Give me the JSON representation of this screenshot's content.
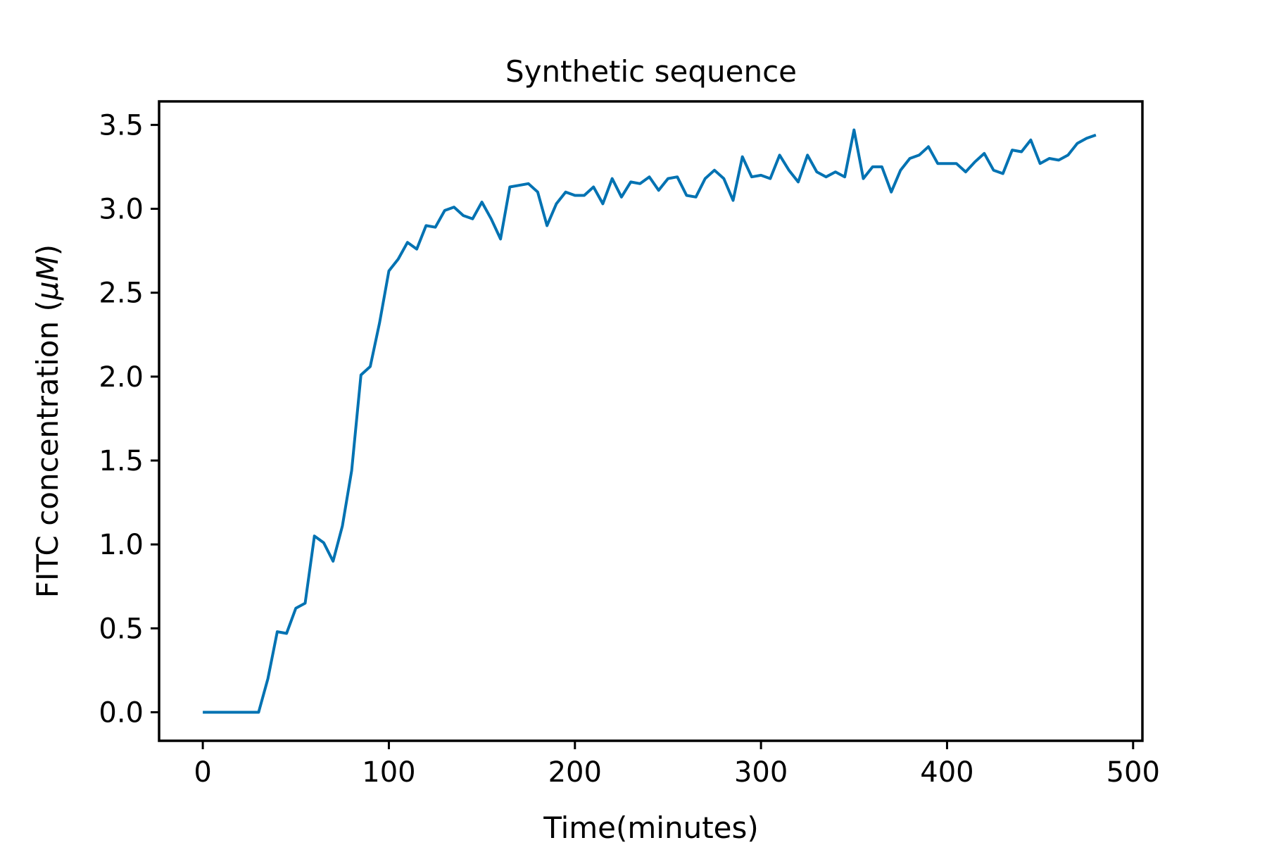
{
  "chart_data": {
    "type": "line",
    "title": "Synthetic sequence",
    "xlabel": "Time(minutes)",
    "ylabel_prefix": "FITC concentration (",
    "ylabel_unit": "μM",
    "ylabel_suffix": ")",
    "xlim": [
      -23.5,
      505
    ],
    "ylim": [
      -0.17,
      3.64
    ],
    "xticks": [
      0,
      100,
      200,
      300,
      400,
      500
    ],
    "xtick_labels": [
      "0",
      "100",
      "200",
      "300",
      "400",
      "500"
    ],
    "yticks": [
      0.0,
      0.5,
      1.0,
      1.5,
      2.0,
      2.5,
      3.0,
      3.5
    ],
    "ytick_labels": [
      "0.0",
      "0.5",
      "1.0",
      "1.5",
      "2.0",
      "2.5",
      "3.0",
      "3.5"
    ],
    "grid": false,
    "line_color": "#0072b2",
    "series": [
      {
        "x": [
          0,
          5,
          10,
          15,
          20,
          25,
          30,
          35,
          40,
          45,
          50,
          55,
          60,
          65,
          70,
          75,
          80,
          85,
          90,
          95,
          100,
          105,
          110,
          115,
          120,
          125,
          130,
          135,
          140,
          145,
          150,
          155,
          160,
          165,
          170,
          175,
          180,
          185,
          190,
          195,
          200,
          205,
          210,
          215,
          220,
          225,
          230,
          235,
          240,
          245,
          250,
          255,
          260,
          265,
          270,
          275,
          280,
          285,
          290,
          295,
          300,
          305,
          310,
          315,
          320,
          325,
          330,
          335,
          340,
          345,
          350,
          355,
          360,
          365,
          370,
          375,
          380,
          385,
          390,
          395,
          400,
          405,
          410,
          415,
          420,
          425,
          430,
          435,
          440,
          445,
          450,
          455,
          460,
          465,
          470,
          475,
          480
        ],
        "y": [
          0,
          0,
          0,
          0,
          0,
          0,
          0,
          0.2,
          0.48,
          0.47,
          0.62,
          0.65,
          1.05,
          1.01,
          0.9,
          1.11,
          1.44,
          2.01,
          2.06,
          2.32,
          2.63,
          2.7,
          2.8,
          2.76,
          2.9,
          2.89,
          2.99,
          3.01,
          2.96,
          2.94,
          3.04,
          2.94,
          2.82,
          3.13,
          3.14,
          3.15,
          3.1,
          2.9,
          3.03,
          3.1,
          3.08,
          3.08,
          3.13,
          3.03,
          3.18,
          3.07,
          3.16,
          3.15,
          3.19,
          3.11,
          3.18,
          3.19,
          3.08,
          3.07,
          3.18,
          3.23,
          3.18,
          3.05,
          3.31,
          3.19,
          3.2,
          3.18,
          3.32,
          3.23,
          3.16,
          3.32,
          3.22,
          3.19,
          3.22,
          3.19,
          3.47,
          3.18,
          3.25,
          3.25,
          3.1,
          3.23,
          3.3,
          3.32,
          3.37,
          3.27,
          3.27,
          3.27,
          3.22,
          3.28,
          3.33,
          3.23,
          3.21,
          3.35,
          3.34,
          3.41,
          3.27,
          3.3,
          3.29,
          3.32,
          3.39,
          3.42,
          3.44
        ]
      }
    ]
  }
}
